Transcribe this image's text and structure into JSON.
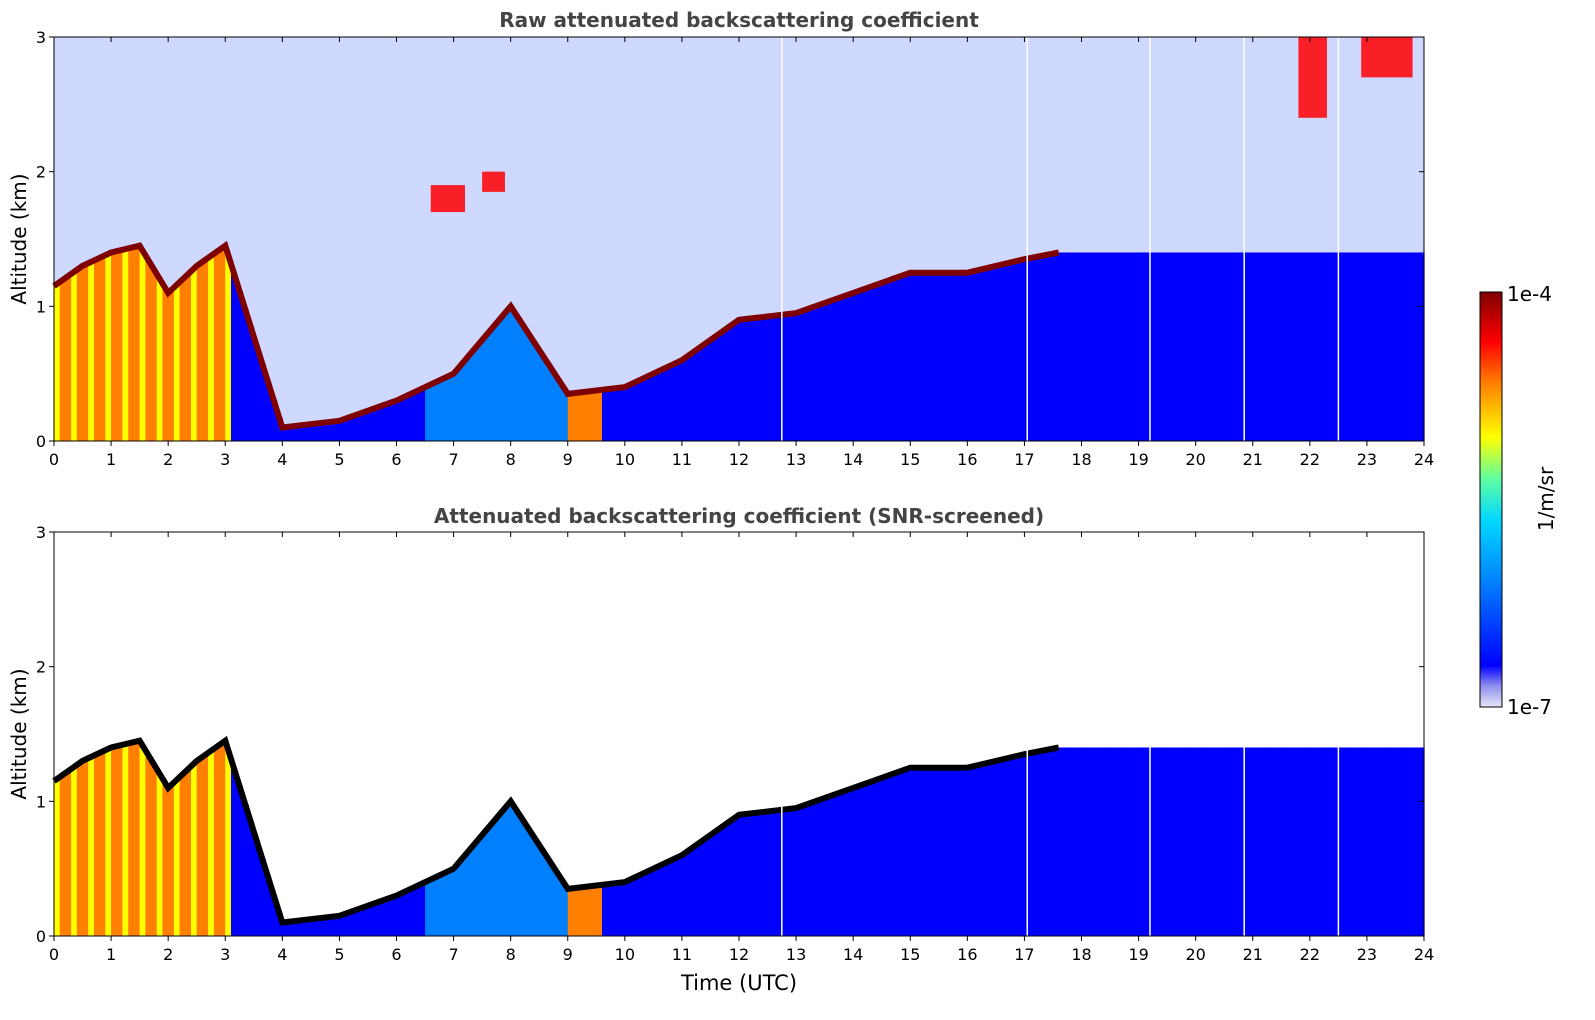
{
  "chart_data": [
    {
      "type": "heatmap",
      "title": "Raw attenuated backscattering coefficient",
      "xlabel": "",
      "ylabel": "Altitude (km)",
      "xlim": [
        0,
        24
      ],
      "ylim": [
        0,
        3
      ],
      "xticks": [
        "0",
        "1",
        "2",
        "3",
        "4",
        "5",
        "6",
        "7",
        "8",
        "9",
        "10",
        "11",
        "12",
        "13",
        "14",
        "15",
        "16",
        "17",
        "18",
        "19",
        "20",
        "21",
        "22",
        "23",
        "24"
      ],
      "yticks": [
        "0",
        "1",
        "2",
        "3"
      ],
      "cloud_base_km": {
        "time_h": [
          0,
          0.5,
          1,
          1.5,
          2,
          2.5,
          3,
          4,
          5,
          6,
          7,
          8,
          9,
          10,
          11,
          12,
          13,
          14,
          15,
          16,
          17,
          17.6
        ],
        "altitude_km": [
          1.15,
          1.3,
          1.4,
          1.45,
          1.1,
          1.3,
          1.45,
          0.1,
          0.15,
          0.3,
          0.5,
          1.0,
          0.35,
          0.4,
          0.6,
          0.9,
          0.95,
          1.1,
          1.25,
          1.25,
          1.35,
          1.4
        ]
      },
      "elevated_layers": [
        {
          "time_h": [
            6.6,
            7.2
          ],
          "altitude_km": [
            1.7,
            1.9
          ]
        },
        {
          "time_h": [
            7.5,
            7.9
          ],
          "altitude_km": [
            1.85,
            2.0
          ]
        },
        {
          "time_h": [
            21.8,
            22.3
          ],
          "altitude_km": [
            2.4,
            3.0
          ]
        },
        {
          "time_h": [
            22.9,
            23.8
          ],
          "altitude_km": [
            2.7,
            3.0
          ]
        }
      ],
      "missing_profiles_h": [
        12.75,
        17.05,
        19.2,
        20.85,
        22.5
      ]
    },
    {
      "type": "heatmap",
      "title": "Attenuated backscattering coefficient (SNR-screened)",
      "xlabel": "Time (UTC)",
      "ylabel": "Altitude (km)",
      "xlim": [
        0,
        24
      ],
      "ylim": [
        0,
        3
      ],
      "xticks": [
        "0",
        "1",
        "2",
        "3",
        "4",
        "5",
        "6",
        "7",
        "8",
        "9",
        "10",
        "11",
        "12",
        "13",
        "14",
        "15",
        "16",
        "17",
        "18",
        "19",
        "20",
        "21",
        "22",
        "23",
        "24"
      ],
      "yticks": [
        "0",
        "1",
        "2",
        "3"
      ],
      "cloud_base_km": {
        "time_h": [
          0,
          0.5,
          1,
          1.5,
          2,
          2.5,
          3,
          4,
          5,
          6,
          7,
          8,
          9,
          10,
          11,
          12,
          13,
          14,
          15,
          16,
          17,
          17.6
        ],
        "altitude_km": [
          1.15,
          1.3,
          1.4,
          1.45,
          1.1,
          1.3,
          1.45,
          0.1,
          0.15,
          0.3,
          0.5,
          1.0,
          0.35,
          0.4,
          0.6,
          0.9,
          0.95,
          1.1,
          1.25,
          1.25,
          1.35,
          1.4
        ]
      },
      "missing_profiles_h": [
        12.75,
        17.05,
        19.2,
        20.85,
        22.5
      ]
    }
  ],
  "colorbar": {
    "label": "1/m/sr",
    "min_label": "1e-7",
    "max_label": "1e-4",
    "scale": "log",
    "colors": [
      "#00007f",
      "#0000ff",
      "#0080ff",
      "#00ffff",
      "#80ff80",
      "#ffff00",
      "#ff8000",
      "#ff0000",
      "#7f0000"
    ]
  }
}
